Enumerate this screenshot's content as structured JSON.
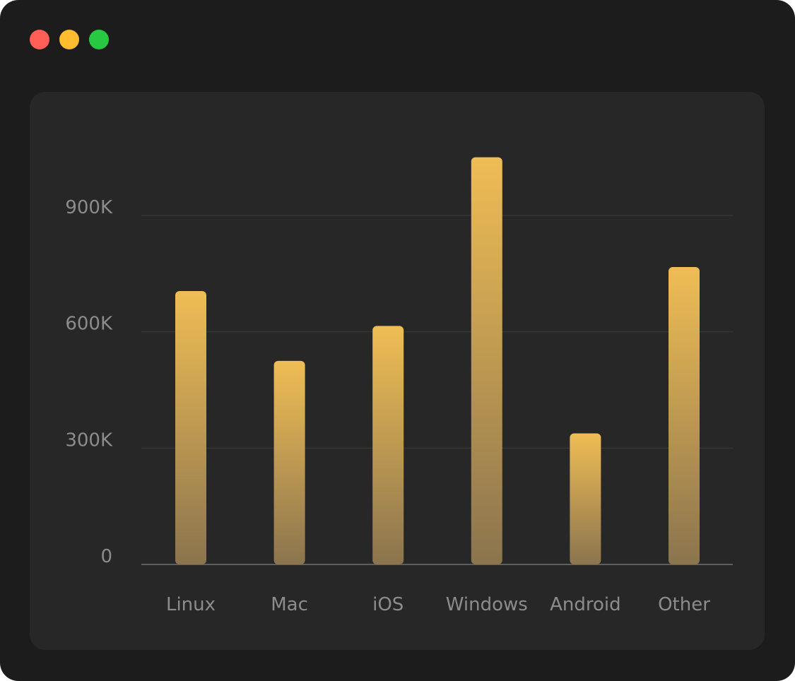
{
  "window": {
    "controls": [
      {
        "name": "close-button",
        "color": "#ff5f57"
      },
      {
        "name": "minimize-button",
        "color": "#febc2e"
      },
      {
        "name": "zoom-button",
        "color": "#28c840"
      }
    ]
  },
  "chart_data": {
    "type": "bar",
    "title": "",
    "xlabel": "",
    "ylabel": "",
    "categories": [
      "Linux",
      "Mac",
      "iOS",
      "Windows",
      "Android",
      "Other"
    ],
    "values": [
      705000,
      525000,
      615000,
      1050000,
      338000,
      767000
    ],
    "ylim": [
      0,
      1000000
    ],
    "yticks": [
      0,
      300000,
      600000,
      900000
    ],
    "ytick_labels": [
      "0",
      "300K",
      "600K",
      "900K"
    ],
    "grid": true,
    "legend": "none",
    "bar_color_top": "#efbd54",
    "bar_color_bottom": "#8b744e"
  }
}
